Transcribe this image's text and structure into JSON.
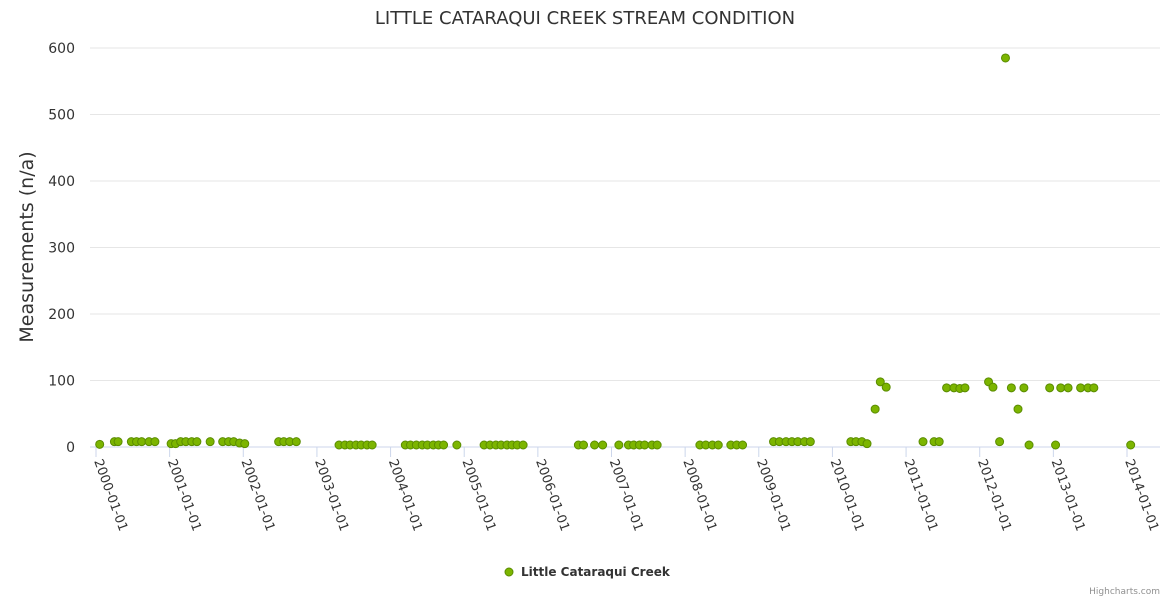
{
  "chart_data": {
    "type": "scatter",
    "title": "LITTLE CATARAQUI CREEK STREAM CONDITION",
    "ylabel": "Measurements (n/a)",
    "xlabel": "",
    "ylim": [
      0,
      600
    ],
    "yticks": [
      0,
      100,
      200,
      300,
      400,
      500,
      600
    ],
    "xlim": [
      2000.0,
      2014.1
    ],
    "xticks": [
      {
        "value": 2000,
        "label": "2000-01-01"
      },
      {
        "value": 2001,
        "label": "2001-01-01"
      },
      {
        "value": 2002,
        "label": "2002-01-01"
      },
      {
        "value": 2003,
        "label": "2003-01-01"
      },
      {
        "value": 2004,
        "label": "2004-01-01"
      },
      {
        "value": 2005,
        "label": "2005-01-01"
      },
      {
        "value": 2006,
        "label": "2006-01-01"
      },
      {
        "value": 2007,
        "label": "2007-01-01"
      },
      {
        "value": 2008,
        "label": "2008-01-01"
      },
      {
        "value": 2009,
        "label": "2009-01-01"
      },
      {
        "value": 2010,
        "label": "2010-01-01"
      },
      {
        "value": 2011,
        "label": "2011-01-01"
      },
      {
        "value": 2012,
        "label": "2012-01-01"
      },
      {
        "value": 2013,
        "label": "2013-01-01"
      },
      {
        "value": 2014,
        "label": "2014-01-01"
      }
    ],
    "grid": true,
    "legend_position": "bottom-center",
    "series": [
      {
        "name": "Little Cataraqui Creek",
        "color": "#7cb500",
        "outline": "#5a8c00",
        "x": [
          2000.05,
          2000.25,
          2000.3,
          2000.48,
          2000.55,
          2000.62,
          2000.72,
          2000.8,
          2001.02,
          2001.08,
          2001.15,
          2001.22,
          2001.3,
          2001.37,
          2001.55,
          2001.72,
          2001.8,
          2001.87,
          2001.95,
          2002.02,
          2002.48,
          2002.55,
          2002.63,
          2002.72,
          2003.3,
          2003.38,
          2003.45,
          2003.53,
          2003.6,
          2003.68,
          2003.75,
          2004.2,
          2004.27,
          2004.35,
          2004.43,
          2004.5,
          2004.58,
          2004.65,
          2004.72,
          2004.9,
          2005.27,
          2005.35,
          2005.43,
          2005.5,
          2005.58,
          2005.65,
          2005.72,
          2005.8,
          2006.55,
          2006.62,
          2006.77,
          2006.88,
          2007.1,
          2007.23,
          2007.3,
          2007.38,
          2007.45,
          2007.55,
          2007.62,
          2008.2,
          2008.28,
          2008.37,
          2008.45,
          2008.62,
          2008.7,
          2008.78,
          2009.2,
          2009.28,
          2009.37,
          2009.45,
          2009.53,
          2009.62,
          2009.7,
          2010.25,
          2010.32,
          2010.4,
          2010.47,
          2010.58,
          2010.65,
          2010.73,
          2011.23,
          2011.38,
          2011.45,
          2011.55,
          2011.65,
          2011.73,
          2011.8,
          2012.12,
          2012.18,
          2012.27,
          2012.35,
          2012.43,
          2012.52,
          2012.6,
          2012.67,
          2012.95,
          2013.03,
          2013.1,
          2013.2,
          2013.37,
          2013.47,
          2013.55,
          2014.05
        ],
        "values": [
          4,
          8,
          8,
          8,
          8,
          8,
          8,
          8,
          5,
          5,
          8,
          8,
          8,
          8,
          8,
          8,
          8,
          8,
          6,
          5,
          8,
          8,
          8,
          8,
          3,
          3,
          3,
          3,
          3,
          3,
          3,
          3,
          3,
          3,
          3,
          3,
          3,
          3,
          3,
          3,
          3,
          3,
          3,
          3,
          3,
          3,
          3,
          3,
          3,
          3,
          3,
          3,
          3,
          3,
          3,
          3,
          3,
          3,
          3,
          3,
          3,
          3,
          3,
          3,
          3,
          3,
          8,
          8,
          8,
          8,
          8,
          8,
          8,
          8,
          8,
          8,
          5,
          57,
          98,
          90,
          8,
          8,
          8,
          89,
          89,
          88,
          89,
          98,
          90,
          8,
          585,
          89,
          57,
          89,
          3,
          89,
          3,
          89,
          89,
          89,
          89,
          89,
          3
        ]
      }
    ]
  },
  "credits": "Highcharts.com"
}
